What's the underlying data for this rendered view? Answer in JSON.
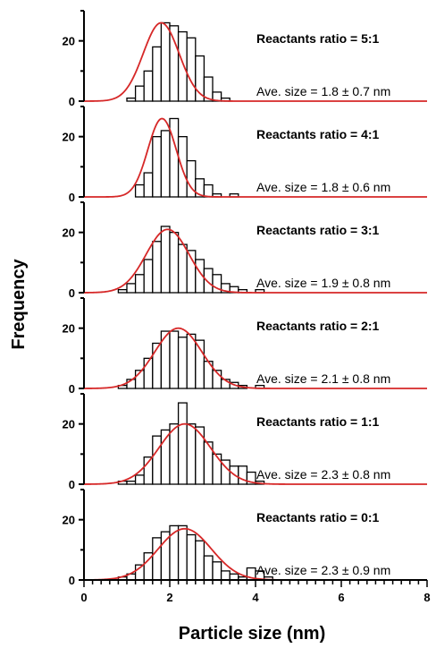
{
  "chart_data": {
    "type": "bar",
    "xlabel": "Particle size (nm)",
    "ylabel": "Frequency",
    "xlim": [
      0,
      8
    ],
    "x_ticks": [
      "0",
      "2",
      "4",
      "6",
      "8"
    ],
    "bin_width": 0.2,
    "bin_starts": [
      0.6,
      0.8,
      1.0,
      1.2,
      1.4,
      1.6,
      1.8,
      2.0,
      2.2,
      2.4,
      2.6,
      2.8,
      3.0,
      3.2,
      3.4,
      3.6,
      3.8,
      4.0,
      4.2
    ],
    "panels": [
      {
        "ratio_label": "Reactants ratio = 5:1",
        "ave_label": "Ave. size = 1.8 ± 0.7 nm",
        "ylim": [
          0,
          30
        ],
        "y_ticks": [
          "0",
          "20"
        ],
        "values": [
          0,
          0,
          1,
          5,
          10,
          18,
          26,
          25,
          23,
          21,
          15,
          8,
          3,
          1,
          0,
          0,
          0,
          0,
          0
        ],
        "fit": {
          "mean": 1.8,
          "sd": 0.42,
          "peak": 26
        }
      },
      {
        "ratio_label": "Reactants ratio = 4:1",
        "ave_label": "Ave. size = 1.8 ± 0.6 nm",
        "ylim": [
          0,
          30
        ],
        "y_ticks": [
          "0",
          "20"
        ],
        "values": [
          0,
          0,
          0,
          4,
          8,
          20,
          22,
          26,
          20,
          12,
          6,
          4,
          1,
          0,
          1,
          0,
          0,
          0,
          0
        ],
        "fit": {
          "mean": 1.82,
          "sd": 0.33,
          "peak": 26
        }
      },
      {
        "ratio_label": "Reactants ratio = 3:1",
        "ave_label": "Ave. size = 1.9 ± 0.8 nm",
        "ylim": [
          0,
          30
        ],
        "y_ticks": [
          "0",
          "20"
        ],
        "values": [
          0,
          1,
          3,
          6,
          11,
          17,
          22,
          20,
          16,
          14,
          11,
          8,
          6,
          3,
          2,
          1,
          0,
          1,
          0
        ],
        "fit": {
          "mean": 1.95,
          "sd": 0.5,
          "peak": 21
        }
      },
      {
        "ratio_label": "Reactants ratio = 2:1",
        "ave_label": "Ave. size = 2.1 ± 0.8 nm",
        "ylim": [
          0,
          30
        ],
        "y_ticks": [
          "0",
          "20"
        ],
        "values": [
          0,
          1,
          3,
          6,
          10,
          15,
          19,
          19,
          17,
          18,
          16,
          9,
          6,
          3,
          2,
          1,
          0,
          1,
          0
        ],
        "fit": {
          "mean": 2.2,
          "sd": 0.55,
          "peak": 20
        }
      },
      {
        "ratio_label": "Reactants ratio = 1:1",
        "ave_label": "Ave. size = 2.3 ± 0.8 nm",
        "ylim": [
          0,
          30
        ],
        "y_ticks": [
          "0",
          "20"
        ],
        "values": [
          0,
          1,
          1,
          3,
          9,
          16,
          18,
          20,
          27,
          20,
          19,
          14,
          10,
          8,
          6,
          6,
          4,
          1,
          0
        ],
        "fit": {
          "mean": 2.35,
          "sd": 0.6,
          "peak": 20
        }
      },
      {
        "ratio_label": "Reactants ratio = 0:1",
        "ave_label": "Ave. size = 2.3 ± 0.9 nm",
        "ylim": [
          0,
          30
        ],
        "y_ticks": [
          "0",
          "20"
        ],
        "values": [
          0,
          1,
          2,
          5,
          9,
          14,
          16,
          18,
          18,
          15,
          13,
          8,
          6,
          3,
          2,
          1,
          4,
          3,
          1
        ],
        "fit": {
          "mean": 2.35,
          "sd": 0.62,
          "peak": 17
        }
      }
    ]
  },
  "colors": {
    "fit_curve": "#d62828",
    "bar_edge": "#000000",
    "bar_fill": "#ffffff",
    "axis": "#000000"
  }
}
